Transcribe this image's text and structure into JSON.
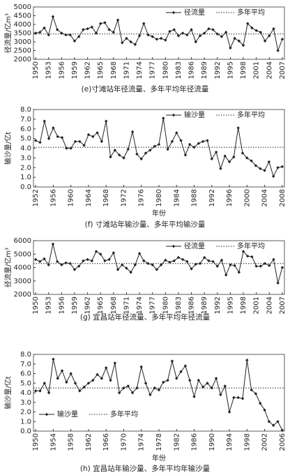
{
  "chart_data": [
    {
      "type": "line",
      "caption": "(e)寸滩站年径流量、多年平均年径流量",
      "y_label": "径流量/亿m³",
      "legend": "upper right",
      "x": [
        1950,
        1951,
        1952,
        1953,
        1954,
        1955,
        1956,
        1957,
        1958,
        1959,
        1960,
        1961,
        1962,
        1963,
        1964,
        1965,
        1966,
        1967,
        1968,
        1969,
        1970,
        1971,
        1972,
        1973,
        1974,
        1975,
        1976,
        1977,
        1978,
        1979,
        1980,
        1981,
        1982,
        1983,
        1984,
        1985,
        1986,
        1987,
        1988,
        1989,
        1990,
        1991,
        1992,
        1993,
        1994,
        1995,
        1996,
        1997,
        1998,
        1999,
        2000,
        2001,
        2002,
        2003,
        2004,
        2005,
        2006,
        2007
      ],
      "series": [
        {
          "name": "径流量",
          "color": "#222222",
          "values": [
            3500,
            3550,
            3800,
            3400,
            4450,
            3700,
            3500,
            3400,
            3400,
            3050,
            3300,
            3700,
            3750,
            3850,
            3500,
            4050,
            4100,
            3700,
            3550,
            4250,
            2950,
            3200,
            3000,
            2850,
            3350,
            4050,
            3400,
            3300,
            3150,
            3200,
            3100,
            3600,
            3700,
            3350,
            3500,
            3400,
            3700,
            3000,
            3350,
            3500,
            3750,
            3700,
            3450,
            3300,
            3550,
            2650,
            3200,
            3050,
            2800,
            4050,
            3800,
            3650,
            3550,
            3050,
            3350,
            3750,
            2500,
            3150
          ]
        },
        {
          "name": "多年平均",
          "color": "#222222",
          "style": "dotted",
          "value": 3450
        }
      ],
      "xlim": [
        1949.5,
        2007.5
      ],
      "ylim": [
        2000,
        5000
      ],
      "xticks": [
        1950,
        1953,
        1956,
        1959,
        1962,
        1965,
        1968,
        1971,
        1974,
        1977,
        1980,
        1983,
        1986,
        1989,
        1992,
        1995,
        1998,
        2001,
        2004,
        2007
      ],
      "yticks": [
        2000,
        2500,
        3000,
        3500,
        4000,
        4500,
        5000
      ]
    },
    {
      "type": "line",
      "caption": "(f) 寸滩站年输沙量、多年平均输沙量",
      "y_label": "输沙量/亿t",
      "x_label": "年份",
      "legend": "upper right",
      "x": [
        1952,
        1953,
        1954,
        1955,
        1956,
        1957,
        1958,
        1959,
        1960,
        1961,
        1962,
        1963,
        1964,
        1965,
        1966,
        1967,
        1968,
        1969,
        1970,
        1971,
        1972,
        1973,
        1974,
        1975,
        1976,
        1977,
        1978,
        1979,
        1980,
        1981,
        1982,
        1983,
        1984,
        1985,
        1986,
        1987,
        1988,
        1989,
        1990,
        1991,
        1992,
        1993,
        1994,
        1995,
        1996,
        1997,
        1998,
        1999,
        2000,
        2001,
        2002,
        2003,
        2004,
        2005,
        2006,
        2007,
        2008
      ],
      "series": [
        {
          "name": "输沙量",
          "color": "#222222",
          "values": [
            4.8,
            4.6,
            6.8,
            5.0,
            6.1,
            5.2,
            5.1,
            4.0,
            4.0,
            4.7,
            4.7,
            4.3,
            5.4,
            5.2,
            5.6,
            4.7,
            6.8,
            3.1,
            3.8,
            3.3,
            3.0,
            3.9,
            5.7,
            3.4,
            2.9,
            3.5,
            3.8,
            4.2,
            4.4,
            7.1,
            3.9,
            4.7,
            5.6,
            4.8,
            3.3,
            4.4,
            4.1,
            4.5,
            4.7,
            4.8,
            2.9,
            3.6,
            1.9,
            3.2,
            2.6,
            3.1,
            6.1,
            3.5,
            3.0,
            2.7,
            2.2,
            1.9,
            1.7,
            2.6,
            1.1,
            2.0,
            2.1
          ]
        },
        {
          "name": "多年平均",
          "color": "#222222",
          "style": "dotted",
          "value": 4.1
        }
      ],
      "xlim": [
        1951.5,
        2008.5
      ],
      "ylim": [
        0,
        8
      ],
      "xticks": [
        1952,
        1956,
        1960,
        1964,
        1968,
        1972,
        1976,
        1980,
        1984,
        1988,
        1992,
        1996,
        2000,
        2004,
        2008
      ],
      "yticks": [
        {
          "value": 0,
          "label": "0.0"
        },
        {
          "value": 1,
          "label": "1.0"
        },
        {
          "value": 2,
          "label": "2.0"
        },
        {
          "value": 3,
          "label": "3.0"
        },
        {
          "value": 4,
          "label": "4.0"
        },
        {
          "value": 5,
          "label": "5.0"
        },
        {
          "value": 6,
          "label": "6.0"
        },
        {
          "value": 7,
          "label": "7.0"
        },
        {
          "value": 8,
          "label": "8.0"
        }
      ]
    },
    {
      "type": "line",
      "caption": "(g) 宜昌站年径流量、多年平均年径流量",
      "y_label": "径流量/亿m³",
      "legend": "upper right",
      "x": [
        1950,
        1951,
        1952,
        1953,
        1954,
        1955,
        1956,
        1957,
        1958,
        1959,
        1960,
        1961,
        1962,
        1963,
        1964,
        1965,
        1966,
        1967,
        1968,
        1969,
        1970,
        1971,
        1972,
        1973,
        1974,
        1975,
        1976,
        1977,
        1978,
        1979,
        1980,
        1981,
        1982,
        1983,
        1984,
        1985,
        1986,
        1987,
        1988,
        1989,
        1990,
        1991,
        1992,
        1993,
        1994,
        1995,
        1996,
        1997,
        1998,
        1999,
        2000,
        2001,
        2002,
        2003,
        2004,
        2005,
        2006,
        2007
      ],
      "series": [
        {
          "name": "径流量",
          "color": "#222222",
          "values": [
            4600,
            4450,
            4650,
            4200,
            5750,
            4450,
            4200,
            4350,
            4300,
            3850,
            4100,
            4500,
            4600,
            4500,
            5200,
            5000,
            4500,
            4600,
            5100,
            3850,
            4200,
            3950,
            3650,
            4200,
            5050,
            4500,
            4300,
            4200,
            3850,
            4200,
            4550,
            4400,
            4500,
            4750,
            4600,
            4450,
            3900,
            4250,
            4300,
            4750,
            4500,
            4450,
            4100,
            4550,
            3450,
            4200,
            4150,
            3650,
            5200,
            4850,
            4800,
            4100,
            4100,
            4300,
            4150,
            4600,
            2850,
            4000
          ]
        },
        {
          "name": "多年平均",
          "color": "#222222",
          "style": "dotted",
          "value": 4300
        }
      ],
      "xlim": [
        1949.5,
        2007.5
      ],
      "ylim": [
        2000,
        6000
      ],
      "xticks": [
        1950,
        1953,
        1956,
        1959,
        1962,
        1965,
        1968,
        1971,
        1974,
        1977,
        1980,
        1983,
        1986,
        1989,
        1992,
        1995,
        1998,
        2001,
        2004,
        2007
      ],
      "yticks": [
        2000,
        3000,
        4000,
        5000,
        6000
      ]
    },
    {
      "type": "line",
      "caption": "(h) 宜昌站年输沙量、多年平均年输沙量",
      "y_label": "输沙量/亿t",
      "x_label": "年份",
      "legend": "lower left",
      "x": [
        1950,
        1951,
        1952,
        1953,
        1954,
        1955,
        1956,
        1957,
        1958,
        1959,
        1960,
        1961,
        1962,
        1963,
        1964,
        1965,
        1966,
        1967,
        1968,
        1969,
        1970,
        1971,
        1972,
        1973,
        1974,
        1975,
        1976,
        1977,
        1978,
        1979,
        1980,
        1981,
        1982,
        1983,
        1984,
        1985,
        1986,
        1987,
        1988,
        1989,
        1990,
        1991,
        1992,
        1993,
        1994,
        1995,
        1996,
        1997,
        1998,
        1999,
        2000,
        2001,
        2002,
        2003,
        2004,
        2005,
        2006
      ],
      "series": [
        {
          "name": "输沙量",
          "color": "#222222",
          "values": [
            4.2,
            4.2,
            5.0,
            4.0,
            7.5,
            5.5,
            6.3,
            5.1,
            6.0,
            5.0,
            4.2,
            4.6,
            5.0,
            5.3,
            5.9,
            5.5,
            6.6,
            5.3,
            7.1,
            4.0,
            4.5,
            4.7,
            4.0,
            4.5,
            6.7,
            5.0,
            3.8,
            4.5,
            4.3,
            5.1,
            5.3,
            7.3,
            5.5,
            6.2,
            6.8,
            5.3,
            3.6,
            5.3,
            4.6,
            5.0,
            4.5,
            5.5,
            3.8,
            4.7,
            2.0,
            3.5,
            3.5,
            3.4,
            7.4,
            4.3,
            3.9,
            2.9,
            2.2,
            1.0,
            0.6,
            1.0,
            0.1
          ]
        },
        {
          "name": "多年平均",
          "color": "#222222",
          "style": "dotted",
          "value": 4.5
        }
      ],
      "xlim": [
        1949.5,
        2006.5
      ],
      "ylim": [
        0,
        8
      ],
      "xticks": [
        1950,
        1954,
        1958,
        1962,
        1966,
        1970,
        1974,
        1978,
        1982,
        1986,
        1990,
        1994,
        1998,
        2002,
        2006
      ],
      "yticks": [
        {
          "value": 0,
          "label": "0.0"
        },
        {
          "value": 1,
          "label": "1.0"
        },
        {
          "value": 2,
          "label": "2.0"
        },
        {
          "value": 3,
          "label": "3.0"
        },
        {
          "value": 4,
          "label": "4.0"
        },
        {
          "value": 5,
          "label": "5.0"
        },
        {
          "value": 6,
          "label": "6.0"
        },
        {
          "value": 7,
          "label": "7.0"
        },
        {
          "value": 8,
          "label": "8.0"
        }
      ]
    }
  ]
}
